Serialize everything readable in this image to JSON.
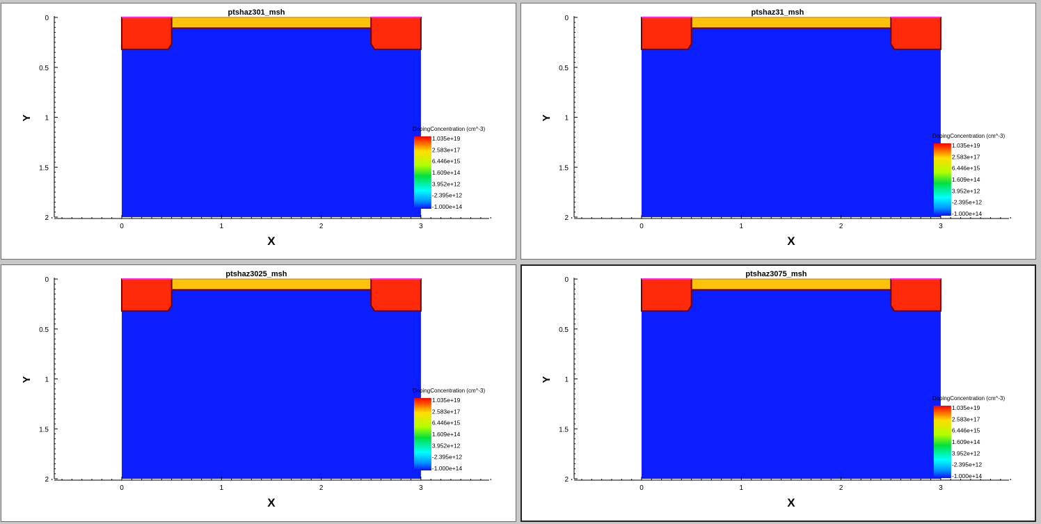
{
  "viewports": [
    {
      "title": "ptshaz301_msh",
      "xlabel": "X",
      "ylabel": "Y",
      "x_ticks": [
        "0",
        "1",
        "2",
        "3"
      ],
      "y_ticks": [
        "0",
        "0.5",
        "1",
        "1.5",
        "2"
      ],
      "legend": {
        "title": "DopingConcentration (cm^-3)",
        "labels": [
          "1.035e+19",
          "2.583e+17",
          "6.446e+15",
          "1.609e+14",
          "3.952e+12",
          "-2.395e+12",
          "-1.000e+14"
        ]
      },
      "active": false
    },
    {
      "title": "ptshaz31_msh",
      "xlabel": "X",
      "ylabel": "Y",
      "x_ticks": [
        "0",
        "1",
        "2",
        "3"
      ],
      "y_ticks": [
        "0",
        "0.5",
        "1",
        "1.5",
        "2"
      ],
      "legend": {
        "title": "DopingConcentration (cm^-3)",
        "labels": [
          "1.035e+19",
          "2.583e+17",
          "6.446e+15",
          "1.609e+14",
          "3.952e+12",
          "-2.395e+12",
          "-1.000e+14"
        ]
      },
      "active": false
    },
    {
      "title": "ptshaz3025_msh",
      "xlabel": "X",
      "ylabel": "Y",
      "x_ticks": [
        "0",
        "1",
        "2",
        "3"
      ],
      "y_ticks": [
        "0",
        "0.5",
        "1",
        "1.5",
        "2"
      ],
      "legend": {
        "title": "DopingConcentration (cm^-3)",
        "labels": [
          "1.035e+19",
          "2.583e+17",
          "6.446e+15",
          "1.609e+14",
          "3.952e+12",
          "-2.395e+12",
          "-1.000e+14"
        ]
      },
      "active": false
    },
    {
      "title": "ptshaz3075_msh",
      "xlabel": "X",
      "ylabel": "Y",
      "x_ticks": [
        "0",
        "1",
        "2",
        "3"
      ],
      "y_ticks": [
        "0",
        "0.5",
        "1",
        "1.5",
        "2"
      ],
      "legend": {
        "title": "DopingConcentration (cm^-3)",
        "labels": [
          "1.035e+19",
          "2.583e+17",
          "6.446e+15",
          "1.609e+14",
          "3.952e+12",
          "-2.395e+12",
          "-1.000e+14"
        ]
      },
      "active": true
    }
  ],
  "colors": {
    "substrate": "#0a1eff",
    "source_drain": "#ff2a0a",
    "oxide": "#ffc20a",
    "contact": "#ff20ff",
    "junction": "#7a0000"
  }
}
